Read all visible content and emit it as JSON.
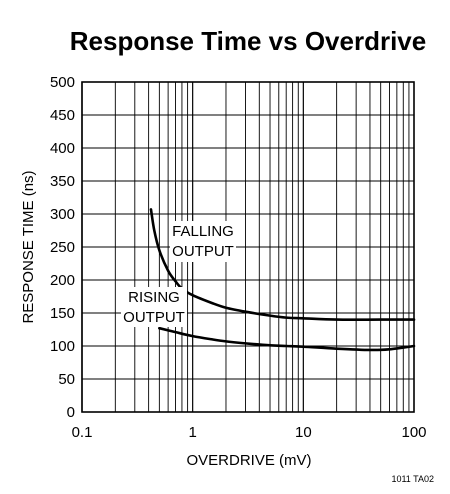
{
  "chart_data": {
    "type": "line",
    "title": "Response Time vs Overdrive",
    "xlabel": "OVERDRIVE (mV)",
    "ylabel": "RESPONSE TIME (ns)",
    "xscale": "log",
    "xlim": [
      0.1,
      100
    ],
    "ylim": [
      0,
      500
    ],
    "x_ticks": [
      {
        "value": 0.1,
        "label": "0.1"
      },
      {
        "value": 1,
        "label": "1"
      },
      {
        "value": 10,
        "label": "10"
      },
      {
        "value": 100,
        "label": "100"
      }
    ],
    "y_ticks": [
      {
        "value": 0,
        "label": "0"
      },
      {
        "value": 50,
        "label": "50"
      },
      {
        "value": 100,
        "label": "100"
      },
      {
        "value": 150,
        "label": "150"
      },
      {
        "value": 200,
        "label": "200"
      },
      {
        "value": 250,
        "label": "250"
      },
      {
        "value": 300,
        "label": "300"
      },
      {
        "value": 350,
        "label": "350"
      },
      {
        "value": 400,
        "label": "400"
      },
      {
        "value": 450,
        "label": "450"
      },
      {
        "value": 500,
        "label": "500"
      }
    ],
    "grid": true,
    "series": [
      {
        "name": "FALLING OUTPUT",
        "label_lines": [
          "FALLING",
          "OUTPUT"
        ],
        "color": "#000000",
        "points": [
          [
            0.42,
            307
          ],
          [
            0.45,
            275
          ],
          [
            0.5,
            245
          ],
          [
            0.6,
            214
          ],
          [
            0.7,
            198
          ],
          [
            0.8,
            187
          ],
          [
            1.0,
            177
          ],
          [
            1.5,
            165
          ],
          [
            2.0,
            158
          ],
          [
            3.0,
            152
          ],
          [
            5.0,
            146
          ],
          [
            7.0,
            143
          ],
          [
            10.0,
            142
          ],
          [
            20.0,
            140
          ],
          [
            50.0,
            140
          ],
          [
            100.0,
            140
          ]
        ]
      },
      {
        "name": "RISING OUTPUT",
        "label_lines": [
          "RISING",
          "OUTPUT"
        ],
        "color": "#000000",
        "points": [
          [
            0.5,
            127
          ],
          [
            0.7,
            121
          ],
          [
            1.0,
            115
          ],
          [
            1.5,
            110
          ],
          [
            2.0,
            107
          ],
          [
            3.0,
            104
          ],
          [
            5.0,
            101
          ],
          [
            7.0,
            100
          ],
          [
            10.0,
            99
          ],
          [
            20.0,
            96
          ],
          [
            40.0,
            94
          ],
          [
            60.0,
            95
          ],
          [
            100.0,
            100
          ]
        ]
      }
    ],
    "footnote": "1011 TA02"
  }
}
